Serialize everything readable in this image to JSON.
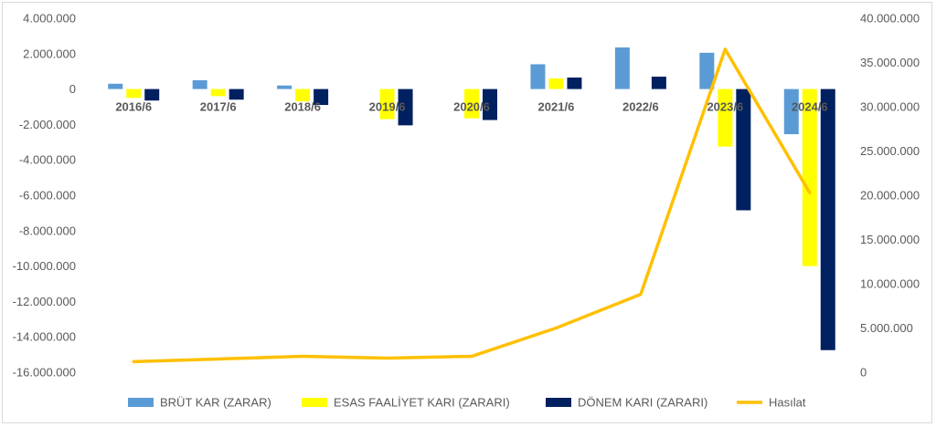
{
  "chart_data": {
    "type": "bar",
    "categories": [
      "2016/6",
      "2017/6",
      "2018/6",
      "2019/6",
      "2020/6",
      "2021/6",
      "2022/6",
      "2023/6",
      "2024/6"
    ],
    "series": [
      {
        "name": "BRÜT KAR (ZARAR)",
        "type": "bar",
        "axis": "left",
        "color": "#5b9bd5",
        "values": [
          300000,
          500000,
          200000,
          0,
          0,
          1400000,
          2350000,
          2050000,
          -2550000
        ]
      },
      {
        "name": "ESAS FAALİYET KARI (ZARARI)",
        "type": "bar",
        "axis": "left",
        "color": "#ffff00",
        "values": [
          -500000,
          -400000,
          -700000,
          -1700000,
          -1650000,
          600000,
          0,
          -3250000,
          -10000000
        ]
      },
      {
        "name": "DÖNEM KARI (ZARARI)",
        "type": "bar",
        "axis": "left",
        "color": "#002060",
        "values": [
          -650000,
          -600000,
          -900000,
          -2050000,
          -1750000,
          650000,
          700000,
          -6850000,
          -14750000
        ]
      },
      {
        "name": "Hasılat",
        "type": "line",
        "axis": "right",
        "color": "#ffc000",
        "values": [
          1200000,
          1500000,
          1800000,
          1600000,
          1800000,
          5000000,
          8800000,
          36500000,
          20300000
        ]
      }
    ],
    "ylim": [
      -16000000,
      4000000
    ],
    "y2lim": [
      0,
      40000000
    ],
    "y_ticks": [
      "4.000.000",
      "2.000.000",
      "0",
      "-2.000.000",
      "-4.000.000",
      "-6.000.000",
      "-8.000.000",
      "-10.000.000",
      "-12.000.000",
      "-14.000.000",
      "-16.000.000"
    ],
    "y2_ticks": [
      "40.000.000",
      "35.000.000",
      "30.000.000",
      "25.000.000",
      "20.000.000",
      "15.000.000",
      "10.000.000",
      "5.000.000",
      "0"
    ],
    "grid": false,
    "legend_position": "bottom"
  }
}
